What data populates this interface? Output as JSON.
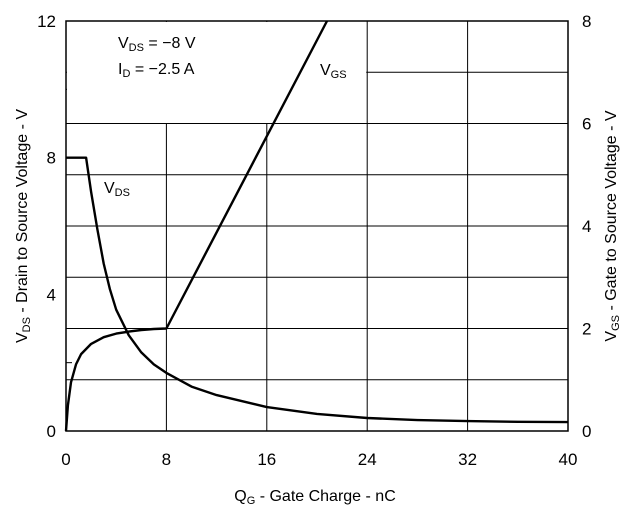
{
  "chart_data": {
    "type": "line",
    "xlabel": {
      "main": "Q",
      "sub": "G",
      "rest": " - Gate Charge - nC"
    },
    "ylabel_left": {
      "main": "V",
      "sub": "DS",
      "rest": " - Drain to Source Voltage - V"
    },
    "ylabel_right": {
      "main": "V",
      "sub": "GS",
      "rest": " - Gate to Source Voltage - V"
    },
    "xlim": [
      0,
      40
    ],
    "ylim_left": [
      0,
      12
    ],
    "ylim_right": [
      0,
      8
    ],
    "x_ticks": [
      "0",
      "8",
      "16",
      "24",
      "32",
      "40"
    ],
    "y_left_ticks": [
      "0",
      "4",
      "8",
      "12"
    ],
    "y_right_ticks": [
      "0",
      "2",
      "4",
      "6",
      "8"
    ],
    "grid": true,
    "conditions": [
      {
        "main": "V",
        "sub": "DS",
        "rest": " = −8 V"
      },
      {
        "main": "I",
        "sub": "D",
        "rest": " = −2.5 A"
      }
    ],
    "series": [
      {
        "name": {
          "main": "V",
          "sub": "DS"
        },
        "axis": "left",
        "x": [
          0,
          1.0,
          1.6,
          2.0,
          2.5,
          3.0,
          3.5,
          4.0,
          5.0,
          6.0,
          7.0,
          8.0,
          10.0,
          12.0,
          16.0,
          20.0,
          24.0,
          28.0,
          32.0,
          36.0,
          40.0
        ],
        "y": [
          8,
          8,
          8,
          7.0,
          5.9,
          4.9,
          4.15,
          3.55,
          2.8,
          2.3,
          1.95,
          1.7,
          1.3,
          1.05,
          0.7,
          0.5,
          0.38,
          0.32,
          0.29,
          0.27,
          0.26
        ]
      },
      {
        "name": {
          "main": "V",
          "sub": "GS"
        },
        "axis": "right",
        "x": [
          0,
          0.15,
          0.4,
          0.8,
          1.2,
          2.0,
          3.0,
          4.0,
          5.0,
          6.0,
          7.0,
          8.0,
          20.8
        ],
        "y": [
          0,
          0.5,
          0.95,
          1.3,
          1.5,
          1.7,
          1.83,
          1.9,
          1.94,
          1.97,
          1.99,
          2.0,
          8.0
        ]
      }
    ]
  }
}
